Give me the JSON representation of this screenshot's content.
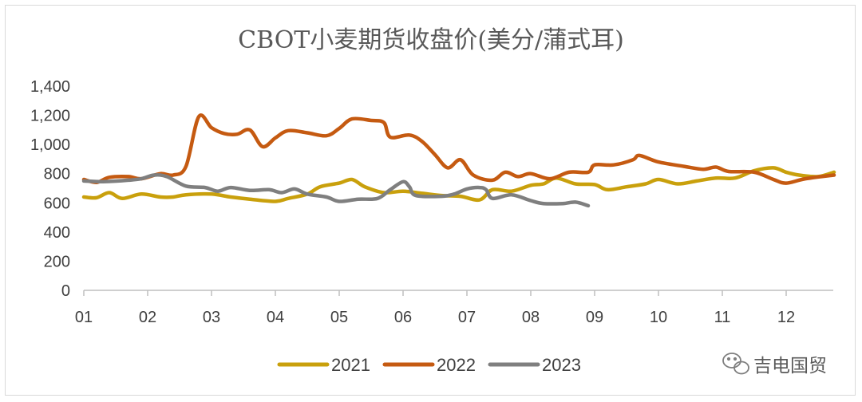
{
  "chart_data": {
    "type": "line",
    "title": "CBOT小麦期货收盘价(美分/蒲式耳)",
    "xlabel": "",
    "ylabel": "",
    "x_tick_labels": [
      "01",
      "02",
      "03",
      "04",
      "05",
      "06",
      "07",
      "08",
      "09",
      "10",
      "11",
      "12"
    ],
    "y_tick_labels": [
      "0",
      "200",
      "400",
      "600",
      "800",
      "1,000",
      "1,200",
      "1,400"
    ],
    "ylim": [
      0,
      1400
    ],
    "xlim": [
      1,
      12.75
    ],
    "grid": false,
    "legend": "bottom",
    "series": [
      {
        "name": "2021",
        "color": "#c9a00c",
        "points": [
          [
            1.0,
            640
          ],
          [
            1.2,
            635
          ],
          [
            1.4,
            670
          ],
          [
            1.6,
            630
          ],
          [
            1.9,
            660
          ],
          [
            2.2,
            640
          ],
          [
            2.4,
            640
          ],
          [
            2.6,
            655
          ],
          [
            3.0,
            660
          ],
          [
            3.3,
            640
          ],
          [
            3.6,
            625
          ],
          [
            4.0,
            610
          ],
          [
            4.2,
            630
          ],
          [
            4.5,
            660
          ],
          [
            4.7,
            710
          ],
          [
            5.0,
            735
          ],
          [
            5.2,
            760
          ],
          [
            5.4,
            710
          ],
          [
            5.7,
            670
          ],
          [
            6.0,
            680
          ],
          [
            6.3,
            665
          ],
          [
            6.6,
            650
          ],
          [
            6.9,
            645
          ],
          [
            7.2,
            620
          ],
          [
            7.4,
            690
          ],
          [
            7.7,
            680
          ],
          [
            8.0,
            720
          ],
          [
            8.2,
            730
          ],
          [
            8.4,
            770
          ],
          [
            8.7,
            730
          ],
          [
            9.0,
            725
          ],
          [
            9.2,
            690
          ],
          [
            9.5,
            710
          ],
          [
            9.8,
            730
          ],
          [
            10.0,
            760
          ],
          [
            10.3,
            730
          ],
          [
            10.6,
            750
          ],
          [
            10.9,
            770
          ],
          [
            11.2,
            770
          ],
          [
            11.5,
            820
          ],
          [
            11.8,
            840
          ],
          [
            12.0,
            810
          ],
          [
            12.2,
            790
          ],
          [
            12.5,
            780
          ],
          [
            12.75,
            810
          ]
        ]
      },
      {
        "name": "2022",
        "color": "#c55a11",
        "points": [
          [
            1.0,
            760
          ],
          [
            1.2,
            740
          ],
          [
            1.4,
            775
          ],
          [
            1.7,
            780
          ],
          [
            1.9,
            765
          ],
          [
            2.2,
            800
          ],
          [
            2.4,
            790
          ],
          [
            2.6,
            850
          ],
          [
            2.8,
            1190
          ],
          [
            3.0,
            1115
          ],
          [
            3.2,
            1075
          ],
          [
            3.4,
            1070
          ],
          [
            3.6,
            1100
          ],
          [
            3.8,
            985
          ],
          [
            4.0,
            1045
          ],
          [
            4.2,
            1095
          ],
          [
            4.5,
            1080
          ],
          [
            4.8,
            1060
          ],
          [
            5.0,
            1110
          ],
          [
            5.2,
            1175
          ],
          [
            5.5,
            1165
          ],
          [
            5.7,
            1150
          ],
          [
            5.8,
            1050
          ],
          [
            6.1,
            1065
          ],
          [
            6.3,
            1020
          ],
          [
            6.5,
            930
          ],
          [
            6.7,
            840
          ],
          [
            6.9,
            895
          ],
          [
            7.1,
            790
          ],
          [
            7.4,
            755
          ],
          [
            7.6,
            810
          ],
          [
            7.8,
            780
          ],
          [
            8.0,
            800
          ],
          [
            8.3,
            765
          ],
          [
            8.6,
            810
          ],
          [
            8.9,
            810
          ],
          [
            9.0,
            860
          ],
          [
            9.3,
            860
          ],
          [
            9.6,
            895
          ],
          [
            9.7,
            925
          ],
          [
            10.0,
            880
          ],
          [
            10.4,
            850
          ],
          [
            10.7,
            830
          ],
          [
            10.9,
            845
          ],
          [
            11.1,
            815
          ],
          [
            11.5,
            810
          ],
          [
            11.8,
            760
          ],
          [
            12.0,
            735
          ],
          [
            12.3,
            765
          ],
          [
            12.75,
            790
          ]
        ]
      },
      {
        "name": "2023",
        "color": "#7f7f7f",
        "points": [
          [
            1.0,
            750
          ],
          [
            1.3,
            745
          ],
          [
            1.7,
            755
          ],
          [
            1.9,
            765
          ],
          [
            2.1,
            790
          ],
          [
            2.3,
            780
          ],
          [
            2.6,
            715
          ],
          [
            2.9,
            705
          ],
          [
            3.1,
            680
          ],
          [
            3.3,
            705
          ],
          [
            3.6,
            685
          ],
          [
            3.9,
            690
          ],
          [
            4.1,
            670
          ],
          [
            4.3,
            695
          ],
          [
            4.5,
            660
          ],
          [
            4.8,
            640
          ],
          [
            5.0,
            610
          ],
          [
            5.3,
            625
          ],
          [
            5.6,
            630
          ],
          [
            5.8,
            690
          ],
          [
            6.0,
            745
          ],
          [
            6.1,
            710
          ],
          [
            6.2,
            650
          ],
          [
            6.6,
            645
          ],
          [
            6.8,
            660
          ],
          [
            7.0,
            695
          ],
          [
            7.2,
            705
          ],
          [
            7.3,
            690
          ],
          [
            7.4,
            630
          ],
          [
            7.7,
            655
          ],
          [
            8.0,
            615
          ],
          [
            8.2,
            595
          ],
          [
            8.5,
            595
          ],
          [
            8.7,
            605
          ],
          [
            8.9,
            580
          ]
        ]
      }
    ]
  },
  "watermark": {
    "text": "吉电国贸",
    "icon": "wechat-icon"
  }
}
